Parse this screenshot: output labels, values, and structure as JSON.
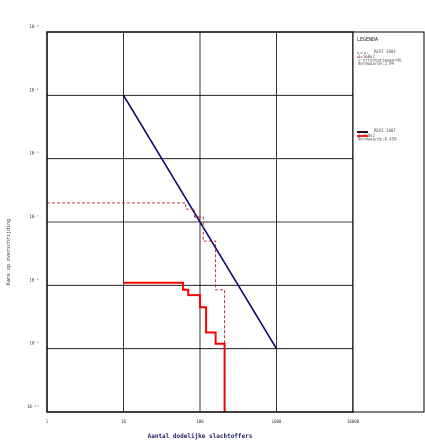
{
  "chart_data": {
    "type": "line",
    "xlabel": "Aantal dodelijke slachtoffers",
    "ylabel": "Kans op overschrijding",
    "x_scale": "log",
    "y_scale": "log",
    "xlim": [
      1,
      10000
    ],
    "ylim": [
      1e-10,
      0.0001
    ],
    "x_tick_labels": [
      "1",
      "10",
      "100",
      "1000",
      "10000"
    ],
    "y_tick_labels": [
      "10⁻⁴",
      "10⁻⁵",
      "10⁻⁶",
      "10⁻⁷",
      "10⁻⁸",
      "10⁻⁹",
      "10⁻¹⁰"
    ],
    "grid": true,
    "legend_position": "right",
    "legend": {
      "title": "LEGENDA",
      "groups": [
        {
          "lines": [
            "REVI 2004",
            "1 *10e2",
            "= oriëntatiewaarde",
            "Normwaarde:2.9%"
          ]
        },
        {
          "lines": [
            "REVI 2007",
            "1 *10e2",
            "Normwaarde:0.459"
          ]
        }
      ]
    },
    "series": [
      {
        "key": "revi2007_norm",
        "color": "#0a0a6e",
        "style": "solid",
        "points": [
          [
            10,
            1e-05
          ],
          [
            1000,
            1e-09
          ]
        ]
      },
      {
        "key": "revi2004_norm",
        "color": "#ff0000",
        "style": "solid",
        "points": [
          [
            10,
            1.1e-08
          ],
          [
            60,
            1.1e-08
          ],
          [
            60,
            8.5e-09
          ],
          [
            70,
            8.5e-09
          ],
          [
            70,
            7e-09
          ],
          [
            100,
            7e-09
          ],
          [
            100,
            4.5e-09
          ],
          [
            120,
            4.5e-09
          ],
          [
            120,
            1.8e-09
          ],
          [
            160,
            1.8e-09
          ],
          [
            160,
            1.2e-09
          ],
          [
            210,
            1.2e-09
          ],
          [
            210,
            1e-10
          ]
        ]
      },
      {
        "key": "revi2004_dashed",
        "color": "#aa2222",
        "style": "dashed",
        "points": [
          [
            1,
            2e-07
          ],
          [
            65,
            2e-07
          ],
          [
            65,
            1.6e-07
          ],
          [
            85,
            1.6e-07
          ],
          [
            85,
            1.2e-07
          ],
          [
            110,
            1.2e-07
          ],
          [
            110,
            5e-08
          ],
          [
            160,
            5e-08
          ],
          [
            160,
            8.5e-09
          ],
          [
            210,
            8.5e-09
          ],
          [
            210,
            1e-10
          ]
        ]
      }
    ],
    "legend_samples": [
      {
        "color": "#444444",
        "style": "dashed"
      },
      {
        "color": "#aa2222",
        "style": "dashed"
      },
      {
        "color": "#000000",
        "style": "solid"
      },
      {
        "color": "#ff0000",
        "style": "solid"
      }
    ]
  }
}
